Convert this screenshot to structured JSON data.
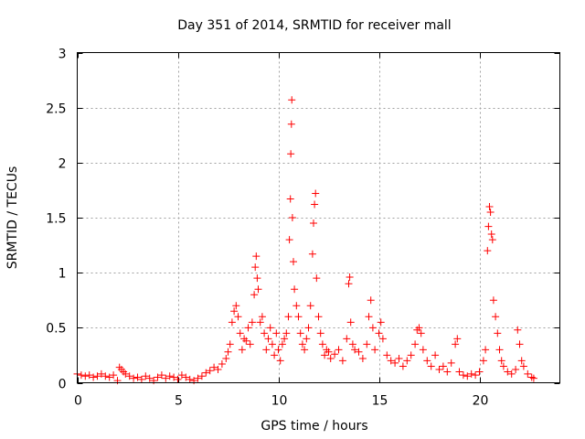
{
  "chart_data": {
    "type": "scatter",
    "title": "Day 351 of 2014, SRMTID for receiver mall",
    "xlabel": "GPS time / hours",
    "ylabel": "SRMTID / TECUs",
    "xlim": [
      0,
      24
    ],
    "ylim": [
      0,
      3
    ],
    "xticks": [
      0,
      5,
      10,
      15,
      20
    ],
    "xtick_labels": [
      "0",
      "5",
      "10",
      "15",
      "20"
    ],
    "yticks": [
      0,
      0.5,
      1,
      1.5,
      2,
      2.5,
      3
    ],
    "ytick_labels": [
      "0",
      "0.5",
      "1",
      "1.5",
      "2",
      "2.5",
      "3"
    ],
    "grid": true,
    "marker": "+",
    "series": [
      {
        "name": "SRMTID",
        "color": "#ff0000",
        "points": [
          [
            0.0,
            0.08
          ],
          [
            0.2,
            0.07
          ],
          [
            0.4,
            0.06
          ],
          [
            0.6,
            0.07
          ],
          [
            0.8,
            0.05
          ],
          [
            1.0,
            0.06
          ],
          [
            1.2,
            0.08
          ],
          [
            1.4,
            0.06
          ],
          [
            1.6,
            0.05
          ],
          [
            1.8,
            0.07
          ],
          [
            2.0,
            0.02
          ],
          [
            2.1,
            0.14
          ],
          [
            2.2,
            0.12
          ],
          [
            2.3,
            0.1
          ],
          [
            2.4,
            0.08
          ],
          [
            2.6,
            0.06
          ],
          [
            2.8,
            0.04
          ],
          [
            3.0,
            0.05
          ],
          [
            3.2,
            0.03
          ],
          [
            3.4,
            0.06
          ],
          [
            3.6,
            0.04
          ],
          [
            3.8,
            0.02
          ],
          [
            4.0,
            0.05
          ],
          [
            4.2,
            0.07
          ],
          [
            4.4,
            0.04
          ],
          [
            4.6,
            0.06
          ],
          [
            4.8,
            0.05
          ],
          [
            5.0,
            0.03
          ],
          [
            5.2,
            0.07
          ],
          [
            5.4,
            0.05
          ],
          [
            5.6,
            0.03
          ],
          [
            5.8,
            0.02
          ],
          [
            6.0,
            0.04
          ],
          [
            6.2,
            0.06
          ],
          [
            6.4,
            0.09
          ],
          [
            6.6,
            0.11
          ],
          [
            6.8,
            0.14
          ],
          [
            7.0,
            0.12
          ],
          [
            7.2,
            0.17
          ],
          [
            7.4,
            0.22
          ],
          [
            7.5,
            0.28
          ],
          [
            7.6,
            0.35
          ],
          [
            7.7,
            0.55
          ],
          [
            7.8,
            0.65
          ],
          [
            7.9,
            0.7
          ],
          [
            8.0,
            0.6
          ],
          [
            8.1,
            0.45
          ],
          [
            8.2,
            0.3
          ],
          [
            8.3,
            0.4
          ],
          [
            8.4,
            0.38
          ],
          [
            8.5,
            0.5
          ],
          [
            8.6,
            0.35
          ],
          [
            8.7,
            0.55
          ],
          [
            8.8,
            0.8
          ],
          [
            8.85,
            1.05
          ],
          [
            8.9,
            1.15
          ],
          [
            8.95,
            0.95
          ],
          [
            9.0,
            0.85
          ],
          [
            9.1,
            0.55
          ],
          [
            9.2,
            0.6
          ],
          [
            9.3,
            0.45
          ],
          [
            9.4,
            0.3
          ],
          [
            9.5,
            0.4
          ],
          [
            9.6,
            0.5
          ],
          [
            9.7,
            0.35
          ],
          [
            9.8,
            0.25
          ],
          [
            9.9,
            0.45
          ],
          [
            10.0,
            0.3
          ],
          [
            10.1,
            0.2
          ],
          [
            10.2,
            0.35
          ],
          [
            10.3,
            0.4
          ],
          [
            10.4,
            0.45
          ],
          [
            10.5,
            0.6
          ],
          [
            10.55,
            1.3
          ],
          [
            10.6,
            1.67
          ],
          [
            10.62,
            2.08
          ],
          [
            10.65,
            2.35
          ],
          [
            10.67,
            2.57
          ],
          [
            10.7,
            1.5
          ],
          [
            10.75,
            1.1
          ],
          [
            10.8,
            0.85
          ],
          [
            10.9,
            0.7
          ],
          [
            11.0,
            0.6
          ],
          [
            11.1,
            0.45
          ],
          [
            11.2,
            0.35
          ],
          [
            11.3,
            0.3
          ],
          [
            11.4,
            0.4
          ],
          [
            11.5,
            0.5
          ],
          [
            11.6,
            0.7
          ],
          [
            11.7,
            1.17
          ],
          [
            11.75,
            1.45
          ],
          [
            11.8,
            1.62
          ],
          [
            11.85,
            1.72
          ],
          [
            11.9,
            0.95
          ],
          [
            12.0,
            0.6
          ],
          [
            12.1,
            0.45
          ],
          [
            12.2,
            0.35
          ],
          [
            12.3,
            0.25
          ],
          [
            12.4,
            0.3
          ],
          [
            12.5,
            0.28
          ],
          [
            12.6,
            0.22
          ],
          [
            12.8,
            0.26
          ],
          [
            13.0,
            0.3
          ],
          [
            13.2,
            0.2
          ],
          [
            13.4,
            0.4
          ],
          [
            13.5,
            0.9
          ],
          [
            13.55,
            0.96
          ],
          [
            13.6,
            0.55
          ],
          [
            13.7,
            0.35
          ],
          [
            13.8,
            0.3
          ],
          [
            14.0,
            0.28
          ],
          [
            14.2,
            0.22
          ],
          [
            14.4,
            0.35
          ],
          [
            14.5,
            0.6
          ],
          [
            14.6,
            0.75
          ],
          [
            14.7,
            0.5
          ],
          [
            14.8,
            0.3
          ],
          [
            15.0,
            0.45
          ],
          [
            15.1,
            0.55
          ],
          [
            15.2,
            0.4
          ],
          [
            15.4,
            0.25
          ],
          [
            15.6,
            0.2
          ],
          [
            15.8,
            0.18
          ],
          [
            16.0,
            0.22
          ],
          [
            16.2,
            0.15
          ],
          [
            16.4,
            0.2
          ],
          [
            16.6,
            0.25
          ],
          [
            16.8,
            0.35
          ],
          [
            16.9,
            0.48
          ],
          [
            17.0,
            0.5
          ],
          [
            17.1,
            0.45
          ],
          [
            17.2,
            0.3
          ],
          [
            17.4,
            0.2
          ],
          [
            17.6,
            0.15
          ],
          [
            17.8,
            0.25
          ],
          [
            18.0,
            0.12
          ],
          [
            18.2,
            0.15
          ],
          [
            18.4,
            0.1
          ],
          [
            18.6,
            0.18
          ],
          [
            18.8,
            0.35
          ],
          [
            18.9,
            0.4
          ],
          [
            19.0,
            0.1
          ],
          [
            19.2,
            0.07
          ],
          [
            19.4,
            0.06
          ],
          [
            19.6,
            0.08
          ],
          [
            19.8,
            0.07
          ],
          [
            20.0,
            0.1
          ],
          [
            20.2,
            0.2
          ],
          [
            20.3,
            0.3
          ],
          [
            20.4,
            1.2
          ],
          [
            20.45,
            1.42
          ],
          [
            20.5,
            1.6
          ],
          [
            20.55,
            1.55
          ],
          [
            20.6,
            1.35
          ],
          [
            20.65,
            1.3
          ],
          [
            20.7,
            0.75
          ],
          [
            20.8,
            0.6
          ],
          [
            20.9,
            0.45
          ],
          [
            21.0,
            0.3
          ],
          [
            21.1,
            0.2
          ],
          [
            21.2,
            0.15
          ],
          [
            21.4,
            0.1
          ],
          [
            21.6,
            0.08
          ],
          [
            21.8,
            0.12
          ],
          [
            21.9,
            0.48
          ],
          [
            22.0,
            0.35
          ],
          [
            22.1,
            0.2
          ],
          [
            22.2,
            0.15
          ],
          [
            22.4,
            0.08
          ],
          [
            22.6,
            0.05
          ],
          [
            22.7,
            0.04
          ]
        ]
      }
    ]
  }
}
